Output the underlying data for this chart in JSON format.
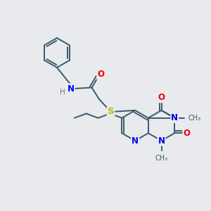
{
  "background_color": "#e8eaed",
  "bond_color": "#3a5a6a",
  "atom_colors": {
    "N": "#0000ee",
    "O": "#ee0000",
    "S": "#bbbb00",
    "H": "#777777",
    "C": "#3a5a6a"
  },
  "figsize": [
    3.0,
    3.0
  ],
  "dpi": 100
}
